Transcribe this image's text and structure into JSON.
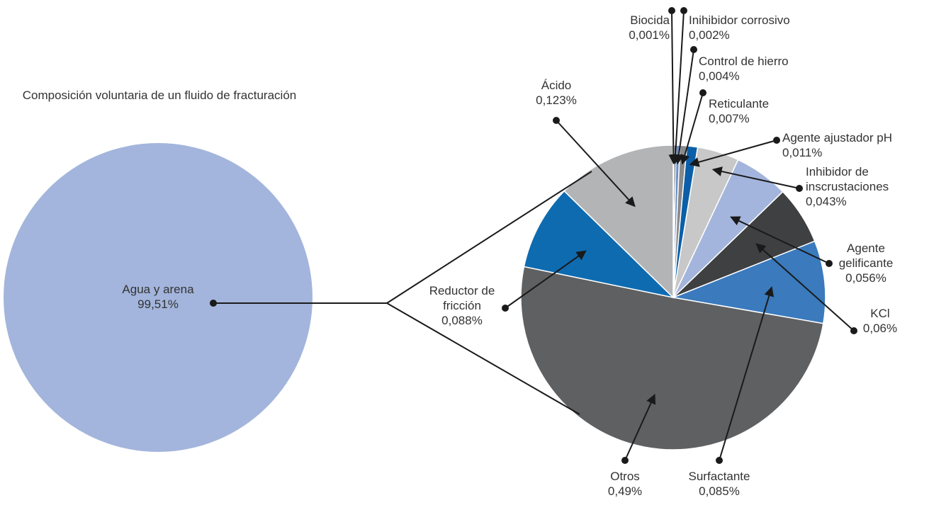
{
  "chart_data": {
    "type": "pie",
    "title": "Composición voluntaria de un fluido de fracturación",
    "main": {
      "name": "Agua y arena",
      "value": 99.51,
      "value_label": "99,51%",
      "color": "#a3b5dc"
    },
    "categories": [
      "Biocida",
      "Inihibidor corrosivo",
      "Control de hierro",
      "Reticulante",
      "Agente ajustador pH",
      "Inhibidor de inscrustaciones",
      "Agente gelificante",
      "KCl",
      "Surfactante",
      "Otros",
      "Reductor de fricción",
      "Ácido"
    ],
    "values": [
      0.001,
      0.002,
      0.004,
      0.007,
      0.011,
      0.043,
      0.056,
      0.06,
      0.085,
      0.49,
      0.088,
      0.123
    ],
    "value_labels": [
      "0,001%",
      "0,002%",
      "0,004%",
      "0,007%",
      "0,011%",
      "0,043%",
      "0,056%",
      "0,06%",
      "0,085%",
      "0,49%",
      "0,088%",
      "0,123%"
    ],
    "colors": [
      "#a3b5dc",
      "#1a1a1a",
      "#6a8fc9",
      "#8a8a8a",
      "#0a5fa8",
      "#c8c8c8",
      "#a3b5dc",
      "#3f4042",
      "#3a7abd",
      "#5f6062",
      "#0e6bb0",
      "#b3b4b6"
    ]
  }
}
